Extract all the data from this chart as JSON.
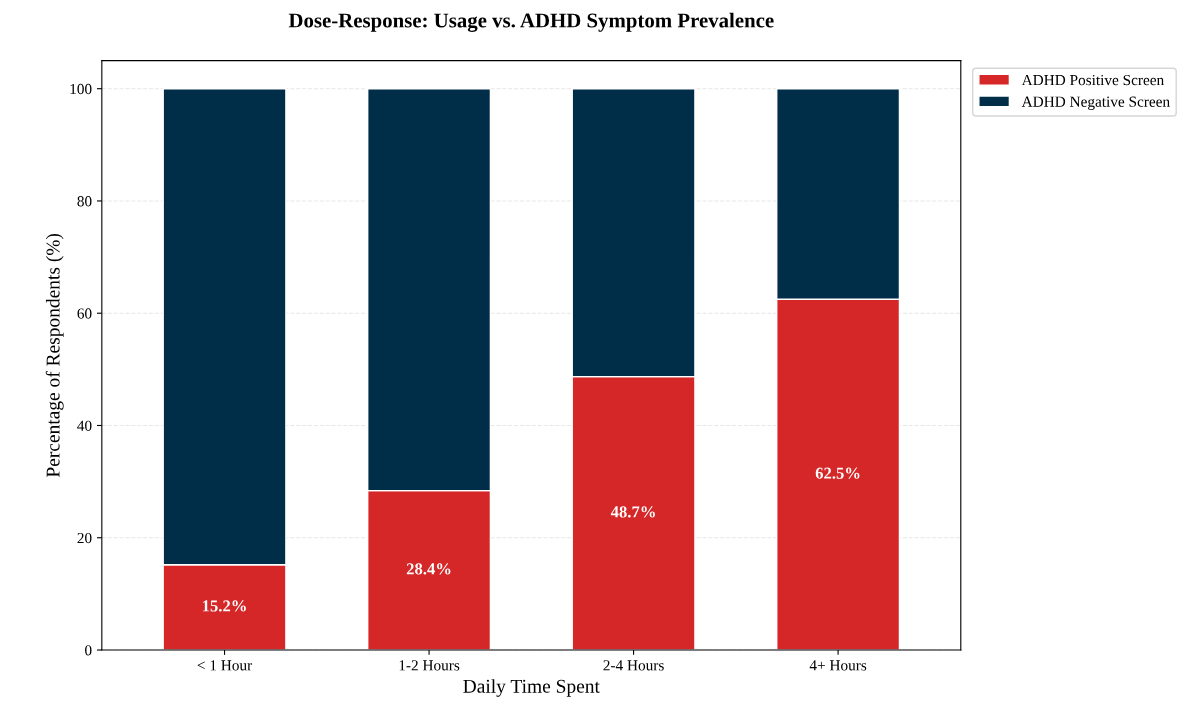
{
  "chart_data": {
    "type": "bar",
    "title": "Dose-Response: Usage vs. ADHD Symptom Prevalence",
    "xlabel": "Daily Time Spent",
    "ylabel": "Percentage of Respondents (%)",
    "categories": [
      "< 1 Hour",
      "1-2 Hours",
      "2-4 Hours",
      "4+ Hours"
    ],
    "stacked": true,
    "series": [
      {
        "name": "ADHD Positive Screen",
        "color": "#d62728",
        "values": [
          15.2,
          28.4,
          48.7,
          62.5
        ],
        "value_labels": [
          "15.2%",
          "28.4%",
          "48.7%",
          "62.5%"
        ]
      },
      {
        "name": "ADHD Negative Screen",
        "color": "#002d48",
        "values": [
          84.8,
          71.6,
          51.3,
          37.5
        ]
      }
    ],
    "ylim": [
      0,
      105
    ],
    "yticks": [
      0,
      20,
      40,
      60,
      80,
      100
    ],
    "grid": "y",
    "legend": "top right"
  }
}
